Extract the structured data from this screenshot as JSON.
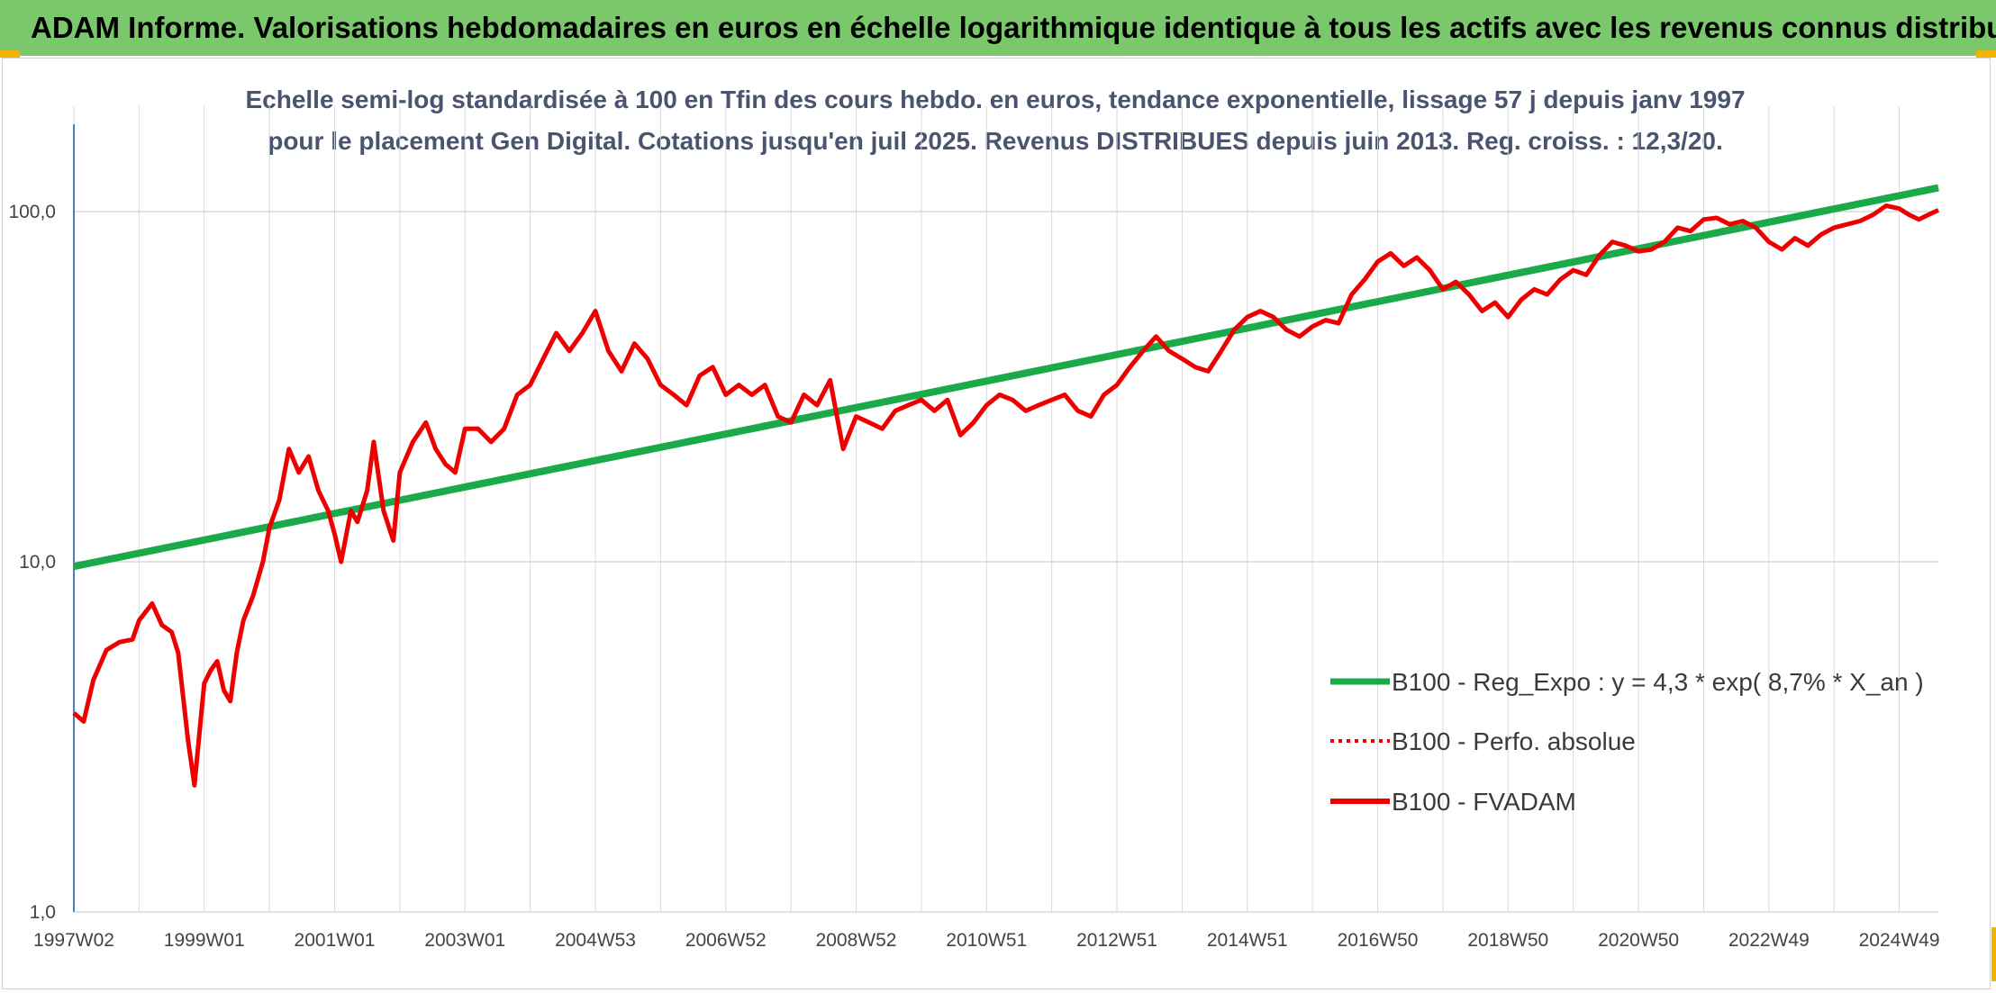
{
  "header": {
    "title": "ADAM Informe. Valorisations hebdomadaires en euros en échelle logarithmique identique à tous les actifs avec les revenus connus distribués"
  },
  "colors": {
    "header_bg": "#7bc86c",
    "regression": "#1aaa4a",
    "fvadam": "#ee0000",
    "perfo": "#ee0000",
    "grid": "#d9d9d9",
    "axis": "#4a7ec0"
  },
  "chart_data": {
    "type": "line",
    "title": "Echelle semi-log standardisée à 100 en Tfin des cours hebdo. en euros, tendance exponentielle, lissage 57 j depuis janv 1997 pour le placement Gen Digital. Cotations jusqu'en juil 2025. Revenus DISTRIBUES depuis juin 2013. Reg. croiss. : 12,3/20.",
    "y_scale": "log",
    "ylim": [
      1,
      200
    ],
    "xlim": [
      1997.0,
      2025.6
    ],
    "grid": true,
    "legend_position": "right-center",
    "y_ticks": [
      {
        "value": 1,
        "label": "1,0"
      },
      {
        "value": 10,
        "label": "10,0"
      },
      {
        "value": 100,
        "label": "100,0"
      }
    ],
    "x_ticks": [
      {
        "value": 1997.0,
        "label": "1997W02"
      },
      {
        "value": 1999.0,
        "label": "1999W01"
      },
      {
        "value": 2001.0,
        "label": "2001W01"
      },
      {
        "value": 2003.0,
        "label": "2003W01"
      },
      {
        "value": 2005.0,
        "label": "2004W53"
      },
      {
        "value": 2007.0,
        "label": "2006W52"
      },
      {
        "value": 2009.0,
        "label": "2008W52"
      },
      {
        "value": 2011.0,
        "label": "2010W51"
      },
      {
        "value": 2013.0,
        "label": "2012W51"
      },
      {
        "value": 2015.0,
        "label": "2014W51"
      },
      {
        "value": 2017.0,
        "label": "2016W50"
      },
      {
        "value": 2019.0,
        "label": "2018W50"
      },
      {
        "value": 2021.0,
        "label": "2020W50"
      },
      {
        "value": 2023.0,
        "label": "2022W49"
      },
      {
        "value": 2025.0,
        "label": "2024W49"
      }
    ],
    "series": [
      {
        "name": "B100 - Reg_Expo : y = 4,3 * exp( 8,7% *  X_an )",
        "style": "solid-thick",
        "x": [
          1997.0,
          2025.6
        ],
        "y": [
          9.7,
          117
        ]
      },
      {
        "name": "B100 - Perfo. absolue",
        "style": "dotted",
        "x": [],
        "y": []
      },
      {
        "name": "B100 - FVADAM",
        "style": "solid",
        "x": [
          1997.0,
          1997.15,
          1997.3,
          1997.5,
          1997.7,
          1997.9,
          1998.0,
          1998.2,
          1998.35,
          1998.5,
          1998.6,
          1998.75,
          1998.85,
          1998.95,
          1999.0,
          1999.1,
          1999.2,
          1999.3,
          1999.4,
          1999.5,
          1999.6,
          1999.75,
          1999.9,
          2000.0,
          2000.15,
          2000.3,
          2000.45,
          2000.6,
          2000.75,
          2000.9,
          2001.0,
          2001.1,
          2001.25,
          2001.35,
          2001.5,
          2001.6,
          2001.75,
          2001.9,
          2002.0,
          2002.2,
          2002.4,
          2002.55,
          2002.7,
          2002.85,
          2003.0,
          2003.2,
          2003.4,
          2003.6,
          2003.8,
          2004.0,
          2004.2,
          2004.4,
          2004.6,
          2004.8,
          2005.0,
          2005.2,
          2005.4,
          2005.6,
          2005.8,
          2006.0,
          2006.2,
          2006.4,
          2006.6,
          2006.8,
          2007.0,
          2007.2,
          2007.4,
          2007.6,
          2007.8,
          2008.0,
          2008.2,
          2008.4,
          2008.6,
          2008.8,
          2009.0,
          2009.2,
          2009.4,
          2009.6,
          2009.8,
          2010.0,
          2010.2,
          2010.4,
          2010.6,
          2010.8,
          2011.0,
          2011.2,
          2011.4,
          2011.6,
          2011.8,
          2012.0,
          2012.2,
          2012.4,
          2012.6,
          2012.8,
          2013.0,
          2013.2,
          2013.4,
          2013.6,
          2013.8,
          2014.0,
          2014.2,
          2014.4,
          2014.6,
          2014.8,
          2015.0,
          2015.2,
          2015.4,
          2015.6,
          2015.8,
          2016.0,
          2016.2,
          2016.4,
          2016.6,
          2016.8,
          2017.0,
          2017.2,
          2017.4,
          2017.6,
          2017.8,
          2018.0,
          2018.2,
          2018.4,
          2018.6,
          2018.8,
          2019.0,
          2019.2,
          2019.4,
          2019.6,
          2019.8,
          2020.0,
          2020.2,
          2020.4,
          2020.6,
          2020.8,
          2021.0,
          2021.2,
          2021.4,
          2021.6,
          2021.8,
          2022.0,
          2022.2,
          2022.4,
          2022.6,
          2022.8,
          2023.0,
          2023.2,
          2023.4,
          2023.6,
          2023.8,
          2024.0,
          2024.2,
          2024.4,
          2024.6,
          2024.8,
          2025.0,
          2025.15,
          2025.3,
          2025.45,
          2025.6
        ],
        "y": [
          3.7,
          3.5,
          4.6,
          5.6,
          5.9,
          6.0,
          6.8,
          7.6,
          6.6,
          6.3,
          5.5,
          3.1,
          2.3,
          3.6,
          4.5,
          4.9,
          5.2,
          4.3,
          4.0,
          5.5,
          6.8,
          8.0,
          10.0,
          12.5,
          15.0,
          21.0,
          18.0,
          20.0,
          16.0,
          14.0,
          12.0,
          10.0,
          14.0,
          13.0,
          16.0,
          22.0,
          14.0,
          11.5,
          18.0,
          22.0,
          25.0,
          21.0,
          19.0,
          18.0,
          24.0,
          24.0,
          22.0,
          24.0,
          30.0,
          32.0,
          38.0,
          45.0,
          40.0,
          45.0,
          52.0,
          40.0,
          35.0,
          42.0,
          38.0,
          32.0,
          30.0,
          28.0,
          34.0,
          36.0,
          30.0,
          32.0,
          30.0,
          32.0,
          26.0,
          25.0,
          30.0,
          28.0,
          33.0,
          21.0,
          26.0,
          25.0,
          24.0,
          27.0,
          28.0,
          29.0,
          27.0,
          29.0,
          23.0,
          25.0,
          28.0,
          30.0,
          29.0,
          27.0,
          28.0,
          29.0,
          30.0,
          27.0,
          26.0,
          30.0,
          32.0,
          36.0,
          40.0,
          44.0,
          40.0,
          38.0,
          36.0,
          35.0,
          40.0,
          46.0,
          50.0,
          52.0,
          50.0,
          46.0,
          44.0,
          47.0,
          49.0,
          48.0,
          58.0,
          64.0,
          72.0,
          76.0,
          70.0,
          74.0,
          68.0,
          60.0,
          63.0,
          58.0,
          52.0,
          55.0,
          50.0,
          56.0,
          60.0,
          58.0,
          64.0,
          68.0,
          66.0,
          75.0,
          82.0,
          80.0,
          77.0,
          78.0,
          82.0,
          90.0,
          88.0,
          95.0,
          96.0,
          92.0,
          94.0,
          90.0,
          82.0,
          78.0,
          84.0,
          80.0,
          86.0,
          90.0,
          92.0,
          94.0,
          98.0,
          104.0,
          102.0,
          98.0,
          95.0,
          98.0,
          101.0
        ]
      }
    ]
  }
}
